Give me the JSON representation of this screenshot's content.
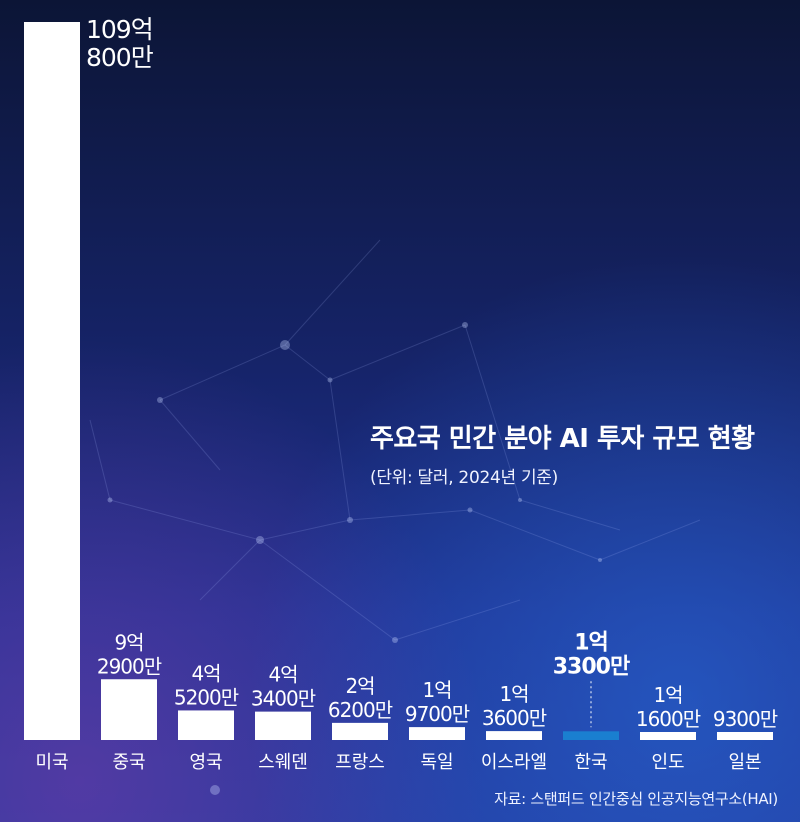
{
  "title": "주요국 민간 분야 AI 투자 규모 현황",
  "subtitle": "(단위: 달러, 2024년 기준)",
  "source": "자료: 스탠퍼드 인간중심 인공지능연구소(HAI)",
  "colors": {
    "bar": "#ffffff",
    "highlight_bar": "#1a7fd0",
    "text": "#ffffff"
  },
  "chart_data": {
    "type": "bar",
    "title": "주요국 민간 분야 AI 투자 규모 현황",
    "subtitle": "(단위: 달러, 2024년 기준)",
    "xlabel": "",
    "ylabel": "",
    "unit": "달러",
    "categories": [
      "미국",
      "중국",
      "영국",
      "스웨덴",
      "프랑스",
      "독일",
      "이스라엘",
      "한국",
      "인도",
      "일본"
    ],
    "values": [
      10980000000,
      929000000,
      452000000,
      434000000,
      262000000,
      197000000,
      136000000,
      133000000,
      116000000,
      93000000
    ],
    "value_labels": [
      [
        "109억",
        "800만"
      ],
      [
        "9억",
        "2900만"
      ],
      [
        "4억",
        "5200만"
      ],
      [
        "4억",
        "3400만"
      ],
      [
        "2억",
        "6200만"
      ],
      [
        "1억",
        "9700만"
      ],
      [
        "1억",
        "3600만"
      ],
      [
        "1억",
        "3300만"
      ],
      [
        "1억",
        "1600만"
      ],
      [
        "9300만"
      ]
    ],
    "highlight": "한국",
    "ylim": [
      0,
      10980000000
    ],
    "grid": false,
    "legend": false
  }
}
